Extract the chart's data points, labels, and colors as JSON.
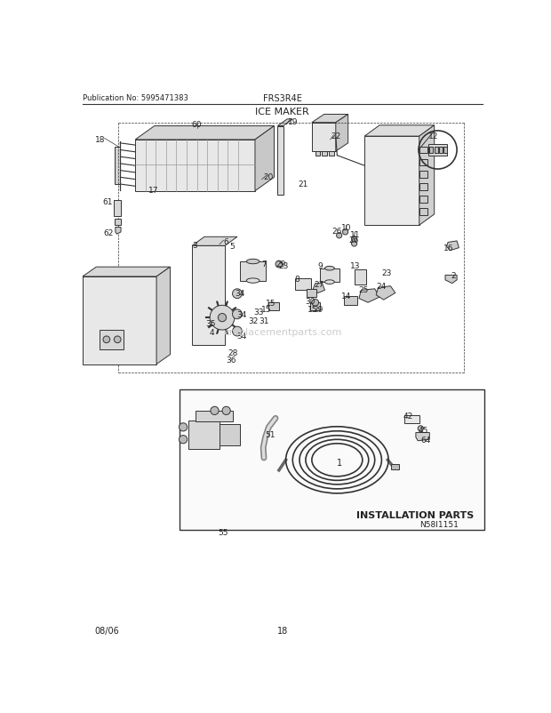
{
  "title": "ICE MAKER",
  "publication": "Publication No: 5995471383",
  "model": "FRS3R4E",
  "diagram_id": "N58I1151",
  "date": "08/06",
  "page": "18",
  "bg_color": "#ffffff",
  "line_color": "#333333",
  "text_color": "#222222",
  "watermark": "ereplacementparts.com",
  "install_label": "INSTALLATION PARTS",
  "fig_w": 6.2,
  "fig_h": 8.03,
  "dpi": 100
}
